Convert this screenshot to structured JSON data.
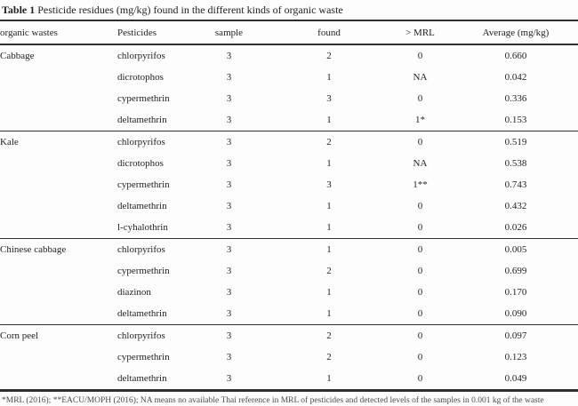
{
  "title": {
    "label": "Table 1",
    "caption": "Pesticide residues (mg/kg) found in the different kinds of organic waste"
  },
  "table": {
    "columns": [
      "organic wastes",
      "Pesticides",
      "sample",
      "found",
      "> MRL",
      "Average (mg/kg)"
    ],
    "groups": [
      {
        "waste": "Cabbage",
        "rows": [
          {
            "pesticide": "chlorpyrifos",
            "sample": "3",
            "found": "2",
            "mrl": "0",
            "average": "0.660"
          },
          {
            "pesticide": "dicrotophos",
            "sample": "3",
            "found": "1",
            "mrl": "NA",
            "average": "0.042"
          },
          {
            "pesticide": "cypermethrin",
            "sample": "3",
            "found": "3",
            "mrl": "0",
            "average": "0.336"
          },
          {
            "pesticide": "deltamethrin",
            "sample": "3",
            "found": "1",
            "mrl": "1*",
            "average": "0.153"
          }
        ]
      },
      {
        "waste": "Kale",
        "rows": [
          {
            "pesticide": "chlorpyrifos",
            "sample": "3",
            "found": "2",
            "mrl": "0",
            "average": "0.519"
          },
          {
            "pesticide": "dicrotophos",
            "sample": "3",
            "found": "1",
            "mrl": "NA",
            "average": "0.538"
          },
          {
            "pesticide": "cypermethrin",
            "sample": "3",
            "found": "3",
            "mrl": "1**",
            "average": "0.743"
          },
          {
            "pesticide": "deltamethrin",
            "sample": "3",
            "found": "1",
            "mrl": "0",
            "average": "0.432"
          },
          {
            "pesticide": "l-cyhalothrin",
            "sample": "3",
            "found": "1",
            "mrl": "0",
            "average": "0.026"
          }
        ]
      },
      {
        "waste": "Chinese cabbage",
        "rows": [
          {
            "pesticide": "chlorpyrifos",
            "sample": "3",
            "found": "1",
            "mrl": "0",
            "average": "0.005"
          },
          {
            "pesticide": "cypermethrin",
            "sample": "3",
            "found": "2",
            "mrl": "0",
            "average": "0.699"
          },
          {
            "pesticide": "diazinon",
            "sample": "3",
            "found": "1",
            "mrl": "0",
            "average": "0.170"
          },
          {
            "pesticide": "deltamethrin",
            "sample": "3",
            "found": "1",
            "mrl": "0",
            "average": "0.090"
          }
        ]
      },
      {
        "waste": "Corn peel",
        "rows": [
          {
            "pesticide": "chlorpyrifos",
            "sample": "3",
            "found": "2",
            "mrl": "0",
            "average": "0.097"
          },
          {
            "pesticide": "cypermethrin",
            "sample": "3",
            "found": "2",
            "mrl": "0",
            "average": "0.123"
          },
          {
            "pesticide": "deltamethrin",
            "sample": "3",
            "found": "1",
            "mrl": "0",
            "average": "0.049"
          }
        ]
      }
    ]
  },
  "footnote_clipped": "*MRL (2016); **EACU/MOPH (2016); NA means no available Thai reference in MRL of pesticides and detected levels of the samples in 0.001 kg of the waste"
}
